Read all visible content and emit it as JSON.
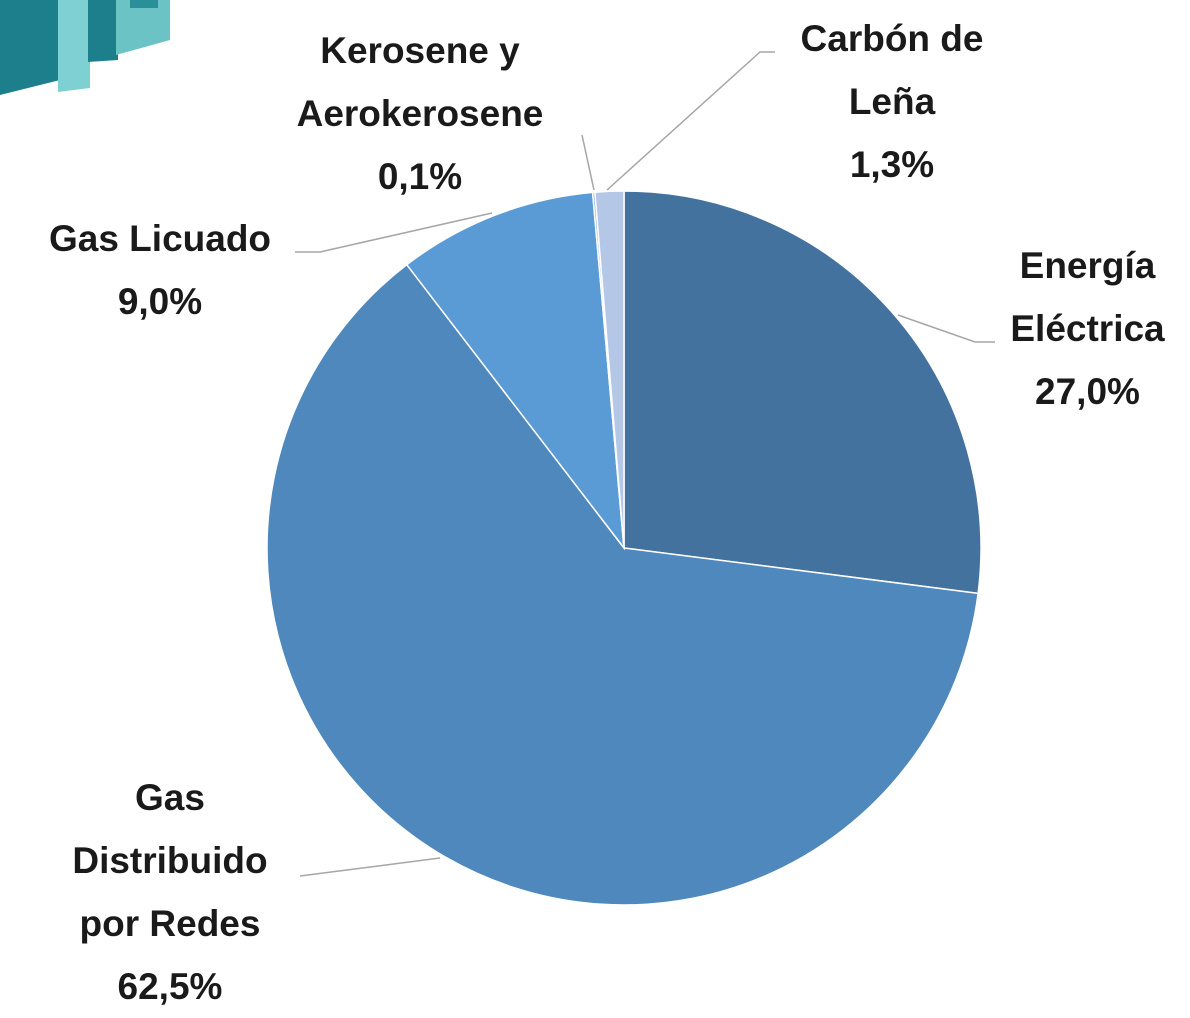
{
  "chart_data": {
    "type": "pie",
    "categories": [
      "Energía Eléctrica",
      "Gas Distribuido por Redes",
      "Gas Licuado",
      "Kerosene y Aerokerosene",
      "Carbón de Leña"
    ],
    "values": [
      27.0,
      62.5,
      9.0,
      0.1,
      1.3
    ],
    "value_labels": [
      "27,0%",
      "62,5%",
      "9,0%",
      "0,1%",
      "1,3%"
    ],
    "colors": [
      "#44729f",
      "#4f88bd",
      "#5b9bd5",
      "#7fa9dc",
      "#b4c7e7"
    ]
  }
}
